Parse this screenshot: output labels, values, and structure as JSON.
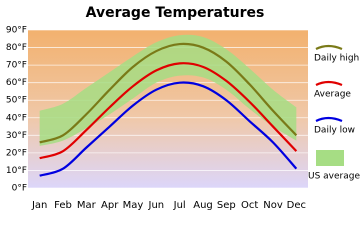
{
  "chart_data": {
    "type": "line",
    "title": "Average Temperatures",
    "categories": [
      "Jan",
      "Feb",
      "Mar",
      "Apr",
      "May",
      "Jun",
      "Jul",
      "Aug",
      "Sep",
      "Oct",
      "Nov",
      "Dec"
    ],
    "ylim": [
      0,
      90
    ],
    "yticks": [
      {
        "value": 0,
        "label": "0°F"
      },
      {
        "value": 10,
        "label": "10°F"
      },
      {
        "value": 20,
        "label": "20°F"
      },
      {
        "value": 30,
        "label": "30°F"
      },
      {
        "value": 40,
        "label": "40°F"
      },
      {
        "value": 50,
        "label": "50°F"
      },
      {
        "value": 60,
        "label": "60°F"
      },
      {
        "value": 70,
        "label": "70°F"
      },
      {
        "value": 80,
        "label": "80°F"
      },
      {
        "value": 90,
        "label": "90°F"
      }
    ],
    "grid": true,
    "series": [
      {
        "name": "Daily high",
        "color": "#7a7a18",
        "values": [
          26,
          30,
          42,
          56,
          69,
          78,
          82,
          80,
          72,
          59,
          44,
          30
        ]
      },
      {
        "name": "Average",
        "color": "#e00000",
        "values": [
          17,
          21,
          33,
          46,
          58,
          67,
          71,
          69,
          61,
          49,
          35,
          21
        ]
      },
      {
        "name": "Daily low",
        "color": "#0000e0",
        "values": [
          7,
          11,
          23,
          35,
          47,
          56,
          60,
          58,
          50,
          38,
          26,
          11
        ]
      },
      {
        "name": "US average",
        "color": "#a6dd84",
        "high": [
          44,
          48,
          57,
          66,
          75,
          83,
          87,
          86,
          79,
          68,
          56,
          46
        ],
        "low": [
          24,
          27,
          34,
          42,
          51,
          60,
          64,
          63,
          56,
          45,
          35,
          27
        ]
      }
    ]
  }
}
